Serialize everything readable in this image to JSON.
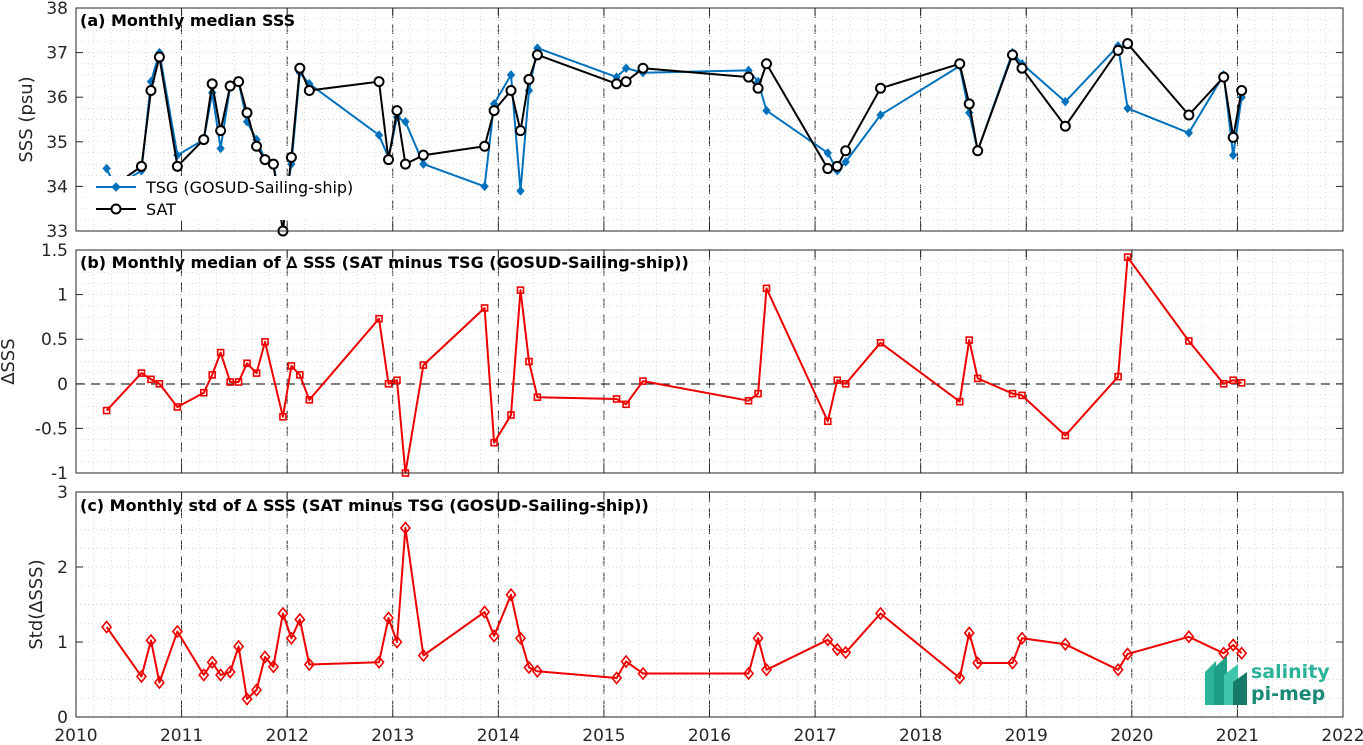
{
  "logo": {
    "line1": "salinity",
    "line2": "pi-mep"
  },
  "colors": {
    "tsg": "#0072BD",
    "sat": "#000000",
    "delta": "#EE0000",
    "grid": "#c8c8c8",
    "logo": "#2bb39a"
  },
  "chart_data": [
    {
      "type": "line",
      "title": "(a) Monthly median SSS",
      "xlabel": "",
      "ylabel": "SSS (psu)",
      "xlim": [
        2010,
        2022
      ],
      "ylim": [
        33,
        38
      ],
      "xticks": [
        "2010",
        "2011",
        "2012",
        "2013",
        "2014",
        "2015",
        "2016",
        "2017",
        "2018",
        "2019",
        "2020",
        "2021",
        "2022"
      ],
      "yticks": [
        "33",
        "34",
        "35",
        "36",
        "37",
        "38"
      ],
      "grid": true,
      "legend_position": "left",
      "series": [
        {
          "name": "TSG (GOSUD-Sailing-ship)",
          "marker": "diamond",
          "x": [
            2010.29,
            2010.37,
            2010.62,
            2010.71,
            2010.79,
            2010.96,
            2011.21,
            2011.29,
            2011.37,
            2011.46,
            2011.54,
            2011.62,
            2011.71,
            2011.79,
            2011.87,
            2011.96,
            2012.04,
            2012.12,
            2012.21,
            2012.87,
            2012.96,
            2013.04,
            2013.12,
            2013.29,
            2013.87,
            2013.96,
            2014.12,
            2014.21,
            2014.29,
            2014.37,
            2015.12,
            2015.21,
            2015.37,
            2016.37,
            2016.46,
            2016.54,
            2017.12,
            2017.21,
            2017.29,
            2017.62,
            2018.37,
            2018.46,
            2018.54,
            2018.87,
            2018.96,
            2019.37,
            2019.87,
            2019.96,
            2020.54,
            2020.87,
            2020.96,
            2021.04
          ],
          "y": [
            34.4,
            34.0,
            34.35,
            36.35,
            37.0,
            34.7,
            35.05,
            36.1,
            34.85,
            36.25,
            36.35,
            35.45,
            35.05,
            34.6,
            34.5,
            33.35,
            34.5,
            36.55,
            36.3,
            35.15,
            34.65,
            35.55,
            35.45,
            34.5,
            34.0,
            35.85,
            36.5,
            33.9,
            36.15,
            37.1,
            36.45,
            36.65,
            36.55,
            36.6,
            36.35,
            35.7,
            34.75,
            34.35,
            34.55,
            35.6,
            36.7,
            35.65,
            34.8,
            37.0,
            36.75,
            35.9,
            37.15,
            35.75,
            35.2,
            36.5,
            34.7,
            36.0
          ]
        },
        {
          "name": "SAT",
          "marker": "circle",
          "x": [
            2010.29,
            2010.62,
            2010.71,
            2010.79,
            2010.96,
            2011.21,
            2011.29,
            2011.37,
            2011.46,
            2011.54,
            2011.62,
            2011.71,
            2011.79,
            2011.87,
            2011.96,
            2012.04,
            2012.12,
            2012.21,
            2012.87,
            2012.96,
            2013.04,
            2013.12,
            2013.29,
            2013.87,
            2013.96,
            2014.12,
            2014.21,
            2014.29,
            2014.37,
            2015.12,
            2015.21,
            2015.37,
            2016.37,
            2016.46,
            2016.54,
            2017.12,
            2017.21,
            2017.29,
            2017.62,
            2018.37,
            2018.46,
            2018.54,
            2018.87,
            2018.96,
            2019.37,
            2019.87,
            2019.96,
            2020.54,
            2020.87,
            2020.96,
            2021.04
          ],
          "y": [
            33.9,
            34.45,
            36.15,
            36.9,
            34.45,
            35.05,
            36.3,
            35.25,
            36.25,
            36.35,
            35.65,
            34.9,
            34.6,
            34.5,
            33.0,
            34.65,
            36.65,
            36.15,
            36.35,
            34.6,
            35.7,
            34.5,
            34.7,
            34.9,
            35.7,
            36.15,
            35.25,
            36.4,
            36.95,
            36.3,
            36.35,
            36.65,
            36.45,
            36.2,
            36.75,
            34.4,
            34.45,
            34.8,
            36.2,
            36.75,
            35.85,
            34.8,
            36.95,
            36.65,
            35.35,
            37.05,
            37.2,
            35.6,
            36.45,
            35.1,
            36.15
          ]
        }
      ]
    },
    {
      "type": "line",
      "title": "(b) Monthly median of ∆ SSS (SAT minus TSG (GOSUD-Sailing-ship))",
      "xlabel": "",
      "ylabel": "∆SSS",
      "xlim": [
        2010,
        2022
      ],
      "ylim": [
        -1,
        1.5
      ],
      "yticks": [
        "-1",
        "-0.5",
        "0",
        "0.5",
        "1",
        "1.5"
      ],
      "grid": true,
      "reference_line_y": 0,
      "series": [
        {
          "name": "",
          "marker": "square",
          "x": [
            2010.29,
            2010.62,
            2010.71,
            2010.79,
            2010.96,
            2011.21,
            2011.29,
            2011.37,
            2011.46,
            2011.54,
            2011.62,
            2011.71,
            2011.79,
            2011.96,
            2012.04,
            2012.12,
            2012.21,
            2012.87,
            2012.96,
            2013.04,
            2013.12,
            2013.29,
            2013.87,
            2013.96,
            2014.12,
            2014.21,
            2014.29,
            2014.37,
            2015.12,
            2015.21,
            2015.37,
            2016.37,
            2016.46,
            2016.54,
            2017.12,
            2017.21,
            2017.29,
            2017.62,
            2018.37,
            2018.46,
            2018.54,
            2018.87,
            2018.96,
            2019.37,
            2019.87,
            2019.96,
            2020.54,
            2020.87,
            2020.96,
            2021.04
          ],
          "y": [
            -0.3,
            0.12,
            0.05,
            0.0,
            -0.26,
            -0.1,
            0.1,
            0.35,
            0.02,
            0.02,
            0.23,
            0.12,
            0.47,
            -0.37,
            0.2,
            0.1,
            -0.18,
            0.73,
            0.0,
            0.04,
            -1.0,
            0.21,
            0.85,
            -0.66,
            -0.35,
            1.05,
            0.25,
            -0.15,
            -0.17,
            -0.23,
            0.03,
            -0.19,
            -0.11,
            1.07,
            -0.42,
            0.04,
            0.0,
            0.46,
            -0.2,
            0.49,
            0.06,
            -0.11,
            -0.13,
            -0.58,
            0.08,
            1.42,
            0.48,
            0.0,
            0.04,
            0.01
          ]
        }
      ]
    },
    {
      "type": "line",
      "title": "(c) Monthly std of ∆ SSS (SAT minus TSG (GOSUD-Sailing-ship))",
      "xlabel": "",
      "ylabel": "Std(∆SSS)",
      "xlim": [
        2010,
        2022
      ],
      "ylim": [
        0,
        3
      ],
      "yticks": [
        "0",
        "1",
        "2",
        "3"
      ],
      "grid": true,
      "series": [
        {
          "name": "",
          "marker": "diamond",
          "x": [
            2010.29,
            2010.62,
            2010.71,
            2010.79,
            2010.96,
            2011.21,
            2011.29,
            2011.37,
            2011.46,
            2011.54,
            2011.62,
            2011.71,
            2011.79,
            2011.87,
            2011.96,
            2012.04,
            2012.12,
            2012.21,
            2012.87,
            2012.96,
            2013.04,
            2013.12,
            2013.29,
            2013.87,
            2013.96,
            2014.12,
            2014.21,
            2014.29,
            2014.37,
            2015.12,
            2015.21,
            2015.37,
            2016.37,
            2016.46,
            2016.54,
            2017.12,
            2017.21,
            2017.29,
            2017.62,
            2018.37,
            2018.46,
            2018.54,
            2018.87,
            2018.96,
            2019.37,
            2019.87,
            2019.96,
            2020.54,
            2020.87,
            2020.96,
            2021.04
          ],
          "y": [
            1.2,
            0.54,
            1.02,
            0.46,
            1.14,
            0.56,
            0.73,
            0.56,
            0.6,
            0.94,
            0.24,
            0.36,
            0.8,
            0.67,
            1.38,
            1.05,
            1.3,
            0.7,
            0.73,
            1.32,
            1.0,
            2.52,
            0.82,
            1.4,
            1.08,
            1.63,
            1.05,
            0.66,
            0.61,
            0.52,
            0.74,
            0.58,
            0.58,
            1.05,
            0.63,
            1.03,
            0.9,
            0.86,
            1.38,
            0.52,
            1.12,
            0.72,
            0.72,
            1.05,
            0.97,
            0.63,
            0.84,
            1.07,
            0.85,
            0.96,
            0.85
          ]
        }
      ]
    }
  ]
}
